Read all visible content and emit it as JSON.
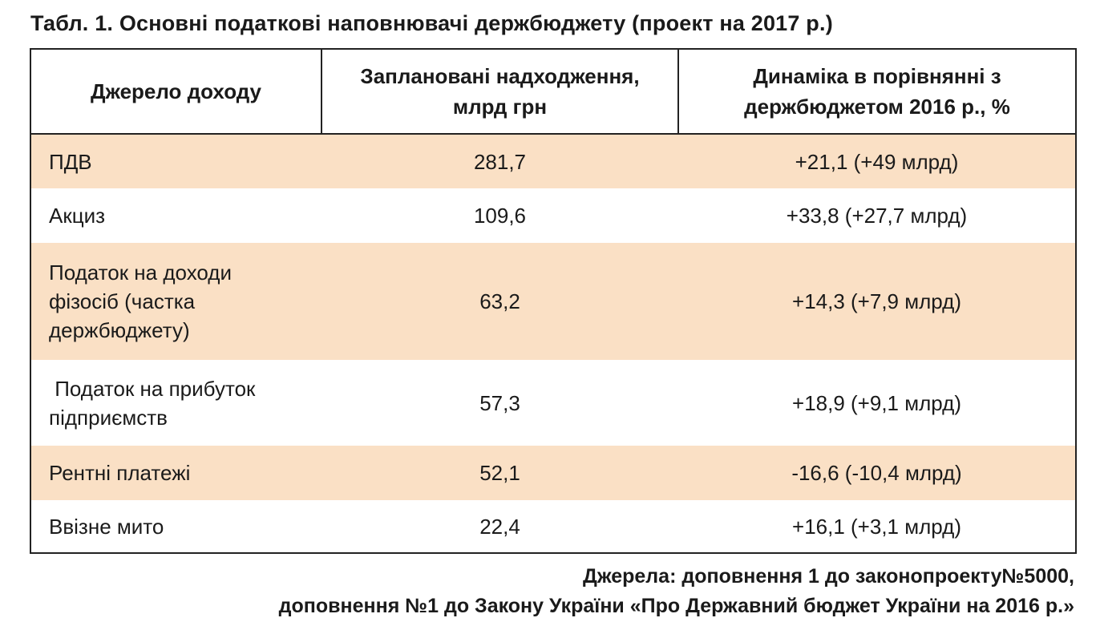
{
  "caption": "Табл. 1. Основні податкові наповнювачі держбюджету (проект на 2017 р.)",
  "table": {
    "headers": [
      "Джерело доходу",
      "Заплановані надходження, млрд грн",
      "Динаміка в порівнянні з держбюджетом 2016 р., %"
    ],
    "rows": [
      {
        "source": "ПДВ",
        "planned": "281,7",
        "dynamics": "+21,1 (+49 млрд)"
      },
      {
        "source": "Акциз",
        "planned": "109,6",
        "dynamics": "+33,8 (+27,7 млрд)"
      },
      {
        "source": "Податок на доходи фізосіб (частка держбюджету)",
        "planned": "63,2",
        "dynamics": "+14,3 (+7,9 млрд)"
      },
      {
        "source": " Податок на прибуток підприємств",
        "planned": "57,3",
        "dynamics": "+18,9 (+9,1 млрд)"
      },
      {
        "source": "Рентні платежі",
        "planned": "52,1",
        "dynamics": "-16,6 (-10,4 млрд)"
      },
      {
        "source": "Ввізне мито",
        "planned": "22,4",
        "dynamics": "+16,1 (+3,1 млрд)"
      }
    ]
  },
  "sources": {
    "line1": "Джерела: доповнення 1 до законопроекту№5000,",
    "line2": "доповнення №1 до Закону України «Про Державний бюджет України на 2016 р.»"
  },
  "colors": {
    "shaded_row": "#fae0c5",
    "border": "#222222"
  }
}
